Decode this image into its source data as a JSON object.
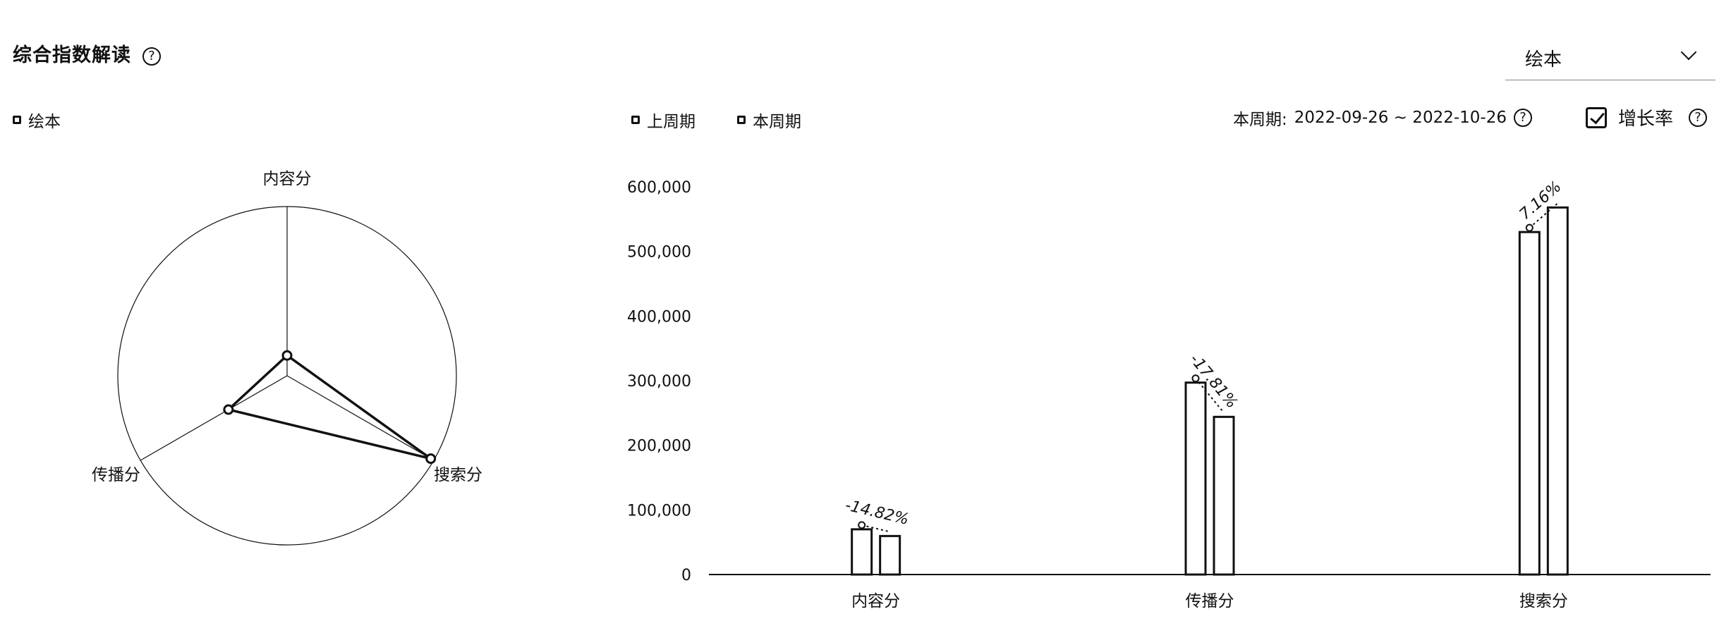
{
  "header": {
    "title": "综合指数解读",
    "help_glyph": "?",
    "dropdown_value": "绘本"
  },
  "radar_legend": [
    "绘本"
  ],
  "bar_legend": [
    "上周期",
    "本周期"
  ],
  "period": {
    "label": "本周期:",
    "range": "2022-09-26 ~ 2022-10-26"
  },
  "growth_toggle": {
    "label": "增长率",
    "checked": true
  },
  "chart_data": [
    {
      "type": "radar",
      "indicators": [
        "内容分",
        "搜索分",
        "传播分"
      ],
      "series": [
        {
          "name": "绘本",
          "values": [
            0.12,
            0.98,
            0.4
          ]
        }
      ],
      "max": 1,
      "grid": false,
      "legend_position": "top-left"
    },
    {
      "type": "bar",
      "categories": [
        "内容分",
        "传播分",
        "搜索分"
      ],
      "series": [
        {
          "name": "上周期",
          "values": [
            70000,
            297000,
            530000
          ]
        },
        {
          "name": "本周期",
          "values": [
            59600,
            244000,
            568000
          ]
        }
      ],
      "growth_labels": [
        "-14.82%",
        "-17.81%",
        "7.16%"
      ],
      "y_ticks": [
        "0",
        "100,000",
        "200,000",
        "300,000",
        "400,000",
        "500,000",
        "600,000"
      ],
      "ylim": [
        0,
        600000
      ],
      "grid": false,
      "legend_position": "top-left"
    }
  ]
}
